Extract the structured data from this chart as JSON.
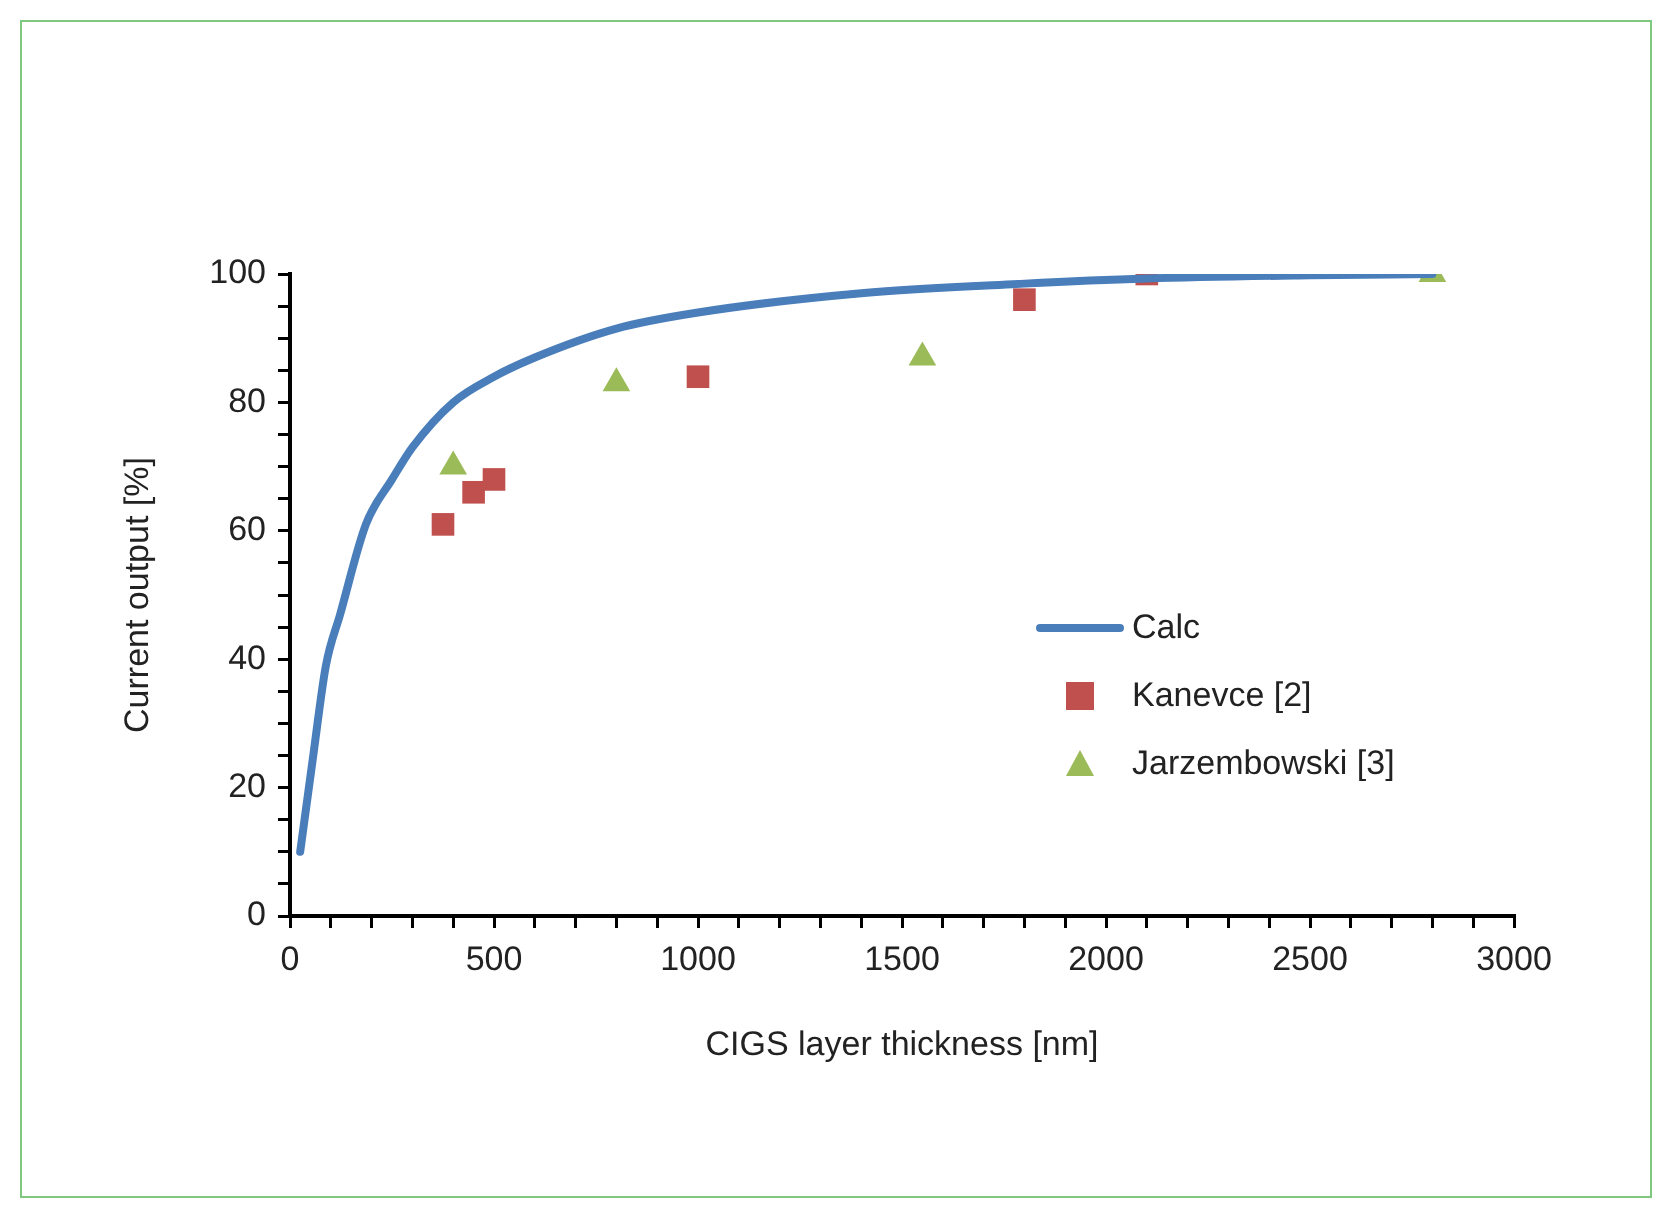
{
  "chart_data": {
    "type": "line",
    "xlabel": "CIGS layer thickness [nm]",
    "ylabel": "Current output [%]",
    "xlim": [
      0,
      3000
    ],
    "ylim": [
      0,
      100
    ],
    "xticks": [
      0,
      {
        "value": 100,
        "label": null
      },
      {
        "value": 200,
        "label": null
      },
      {
        "value": 300,
        "label": null
      },
      {
        "value": 400,
        "label": null
      },
      500,
      {
        "value": 600,
        "label": null
      },
      {
        "value": 700,
        "label": null
      },
      {
        "value": 800,
        "label": null
      },
      {
        "value": 900,
        "label": null
      },
      1000,
      {
        "value": 1100,
        "label": null
      },
      {
        "value": 1200,
        "label": null
      },
      {
        "value": 1300,
        "label": null
      },
      {
        "value": 1400,
        "label": null
      },
      1500,
      {
        "value": 1600,
        "label": null
      },
      {
        "value": 1700,
        "label": null
      },
      {
        "value": 1800,
        "label": null
      },
      {
        "value": 1900,
        "label": null
      },
      2000,
      {
        "value": 2100,
        "label": null
      },
      {
        "value": 2200,
        "label": null
      },
      {
        "value": 2300,
        "label": null
      },
      {
        "value": 2400,
        "label": null
      },
      2500,
      {
        "value": 2600,
        "label": null
      },
      {
        "value": 2700,
        "label": null
      },
      {
        "value": 2800,
        "label": null
      },
      {
        "value": 2900,
        "label": null
      },
      3000
    ],
    "yticks": [
      0,
      {
        "value": 5,
        "label": null
      },
      {
        "value": 10,
        "label": null
      },
      {
        "value": 15,
        "label": null
      },
      20,
      {
        "value": 25,
        "label": null
      },
      {
        "value": 30,
        "label": null
      },
      {
        "value": 35,
        "label": null
      },
      40,
      {
        "value": 45,
        "label": null
      },
      {
        "value": 50,
        "label": null
      },
      {
        "value": 55,
        "label": null
      },
      60,
      {
        "value": 65,
        "label": null
      },
      {
        "value": 70,
        "label": null
      },
      {
        "value": 75,
        "label": null
      },
      80,
      {
        "value": 85,
        "label": null
      },
      {
        "value": 90,
        "label": null
      },
      {
        "value": 95,
        "label": null
      },
      100
    ],
    "grid": false,
    "legend": "right",
    "series": [
      {
        "name": "Calc",
        "color": "#4a7ebb",
        "marker": "none",
        "line_style": "solid",
        "x": [
          25,
          57,
          88,
          123,
          186,
          250,
          300,
          400,
          500,
          600,
          800,
          1000,
          1400,
          1800,
          2100,
          2500,
          2800
        ],
        "values": [
          10,
          25,
          39,
          47,
          61,
          68,
          73,
          80,
          84,
          87,
          91.5,
          94,
          97,
          98.5,
          99.3,
          99.8,
          100
        ]
      },
      {
        "name": "Kanevce [2]",
        "type": "scatter",
        "color": "#c0504d",
        "marker": "square",
        "x": [
          375,
          450,
          500,
          1000,
          1800,
          2100
        ],
        "values": [
          61,
          66,
          68,
          84,
          96,
          100
        ]
      },
      {
        "name": "Jarzembowski [3]",
        "type": "scatter",
        "color": "#9bbb59",
        "marker": "triangle",
        "x": [
          400,
          800,
          1550,
          2800
        ],
        "values": [
          70,
          83,
          87,
          100
        ]
      }
    ]
  }
}
